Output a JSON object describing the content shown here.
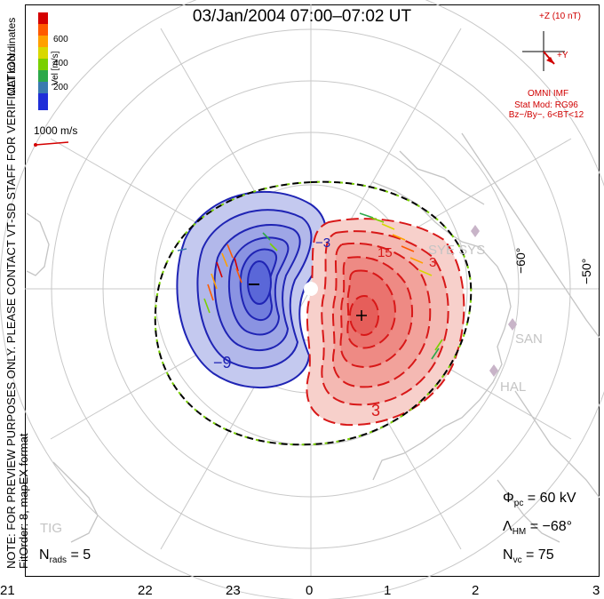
{
  "title": "03/Jan/2004  07:00–07:02  UT",
  "notice": "NOTE: FOR PREVIEW PURPOSES ONLY. PLEASE CONTACT VT-SD STAFF FOR VERIFICATION.",
  "fit_order": "FitOrder: 8, mapEX format",
  "mlt_label": "MLT coordinates",
  "colorbar": {
    "title": "Vel [m/s]",
    "ticks": [
      "600",
      "400",
      "200"
    ],
    "colors": [
      "#d40000",
      "#ff5a00",
      "#ffa000",
      "#d8d800",
      "#7ad000",
      "#2ca84a",
      "#3a7ab0",
      "#1f2fd8"
    ]
  },
  "reference_vector": "1000 m/s",
  "imf": {
    "z_label": "+Z (10 nT)",
    "y_label": "+Y",
    "source": "OMNI IMF",
    "stat_model": "Stat Mod: RG96",
    "stat_bin": "Bz−/By−, 6<BT<12"
  },
  "latitude_labels": [
    "−60°",
    "−50°"
  ],
  "station_labels": [
    "SYE SYS",
    "SAN",
    "HAL",
    "TIG"
  ],
  "contour_labels": {
    "neg_top": "−3",
    "neg_bottom": "−9",
    "pos_top": "15",
    "pos_mid": "3",
    "pos_bottom": "3",
    "neg_min": "−",
    "pos_max": "+"
  },
  "stats": {
    "phi_pc": "= 60 kV",
    "lambda_hm": "= −68°",
    "n_vc": "= 75",
    "n_rads": "= 5"
  },
  "mlt_ticks": [
    "21",
    "22",
    "23",
    "0",
    "1",
    "2",
    "3"
  ]
}
